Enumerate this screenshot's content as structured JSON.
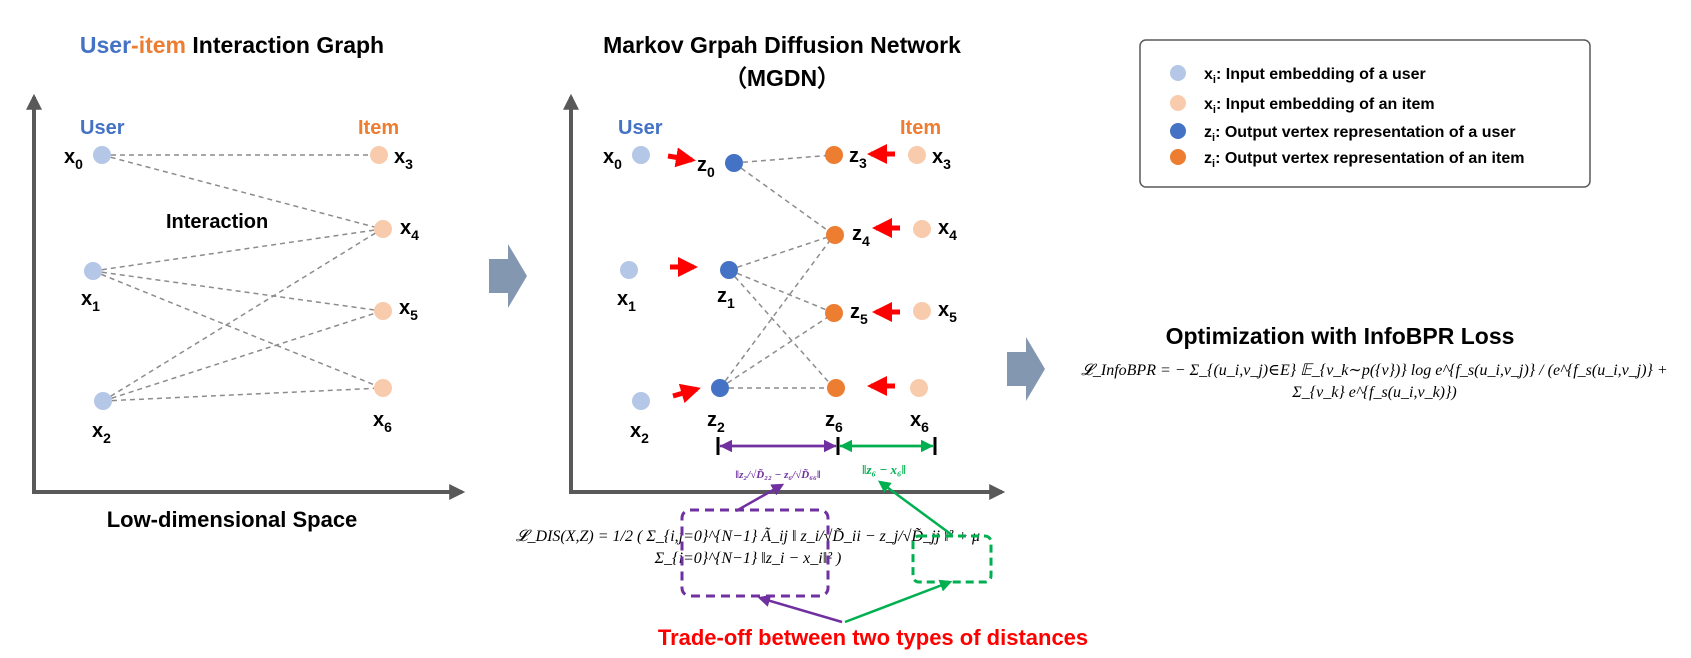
{
  "left_panel": {
    "title_user": "User",
    "title_dash": "-",
    "title_item": "item",
    "title_rest": " Interaction Graph",
    "user_header": "User",
    "item_header": "Item",
    "interaction_label": "Interaction",
    "axis_caption": "Low-dimensional Space",
    "nodes": [
      {
        "id": "x0",
        "label": "x",
        "sub": "0"
      },
      {
        "id": "x1",
        "label": "x",
        "sub": "1"
      },
      {
        "id": "x2",
        "label": "x",
        "sub": "2"
      },
      {
        "id": "x3",
        "label": "x",
        "sub": "3"
      },
      {
        "id": "x4",
        "label": "x",
        "sub": "4"
      },
      {
        "id": "x5",
        "label": "x",
        "sub": "5"
      },
      {
        "id": "x6",
        "label": "x",
        "sub": "6"
      }
    ]
  },
  "middle_panel": {
    "title_line1": "Markov Grpah Diffusion Network",
    "title_line2": "（MGDN）",
    "user_header": "User",
    "item_header": "Item",
    "user_inputs": [
      {
        "label": "x",
        "sub": "0"
      },
      {
        "label": "x",
        "sub": "1"
      },
      {
        "label": "x",
        "sub": "2"
      }
    ],
    "user_outputs": [
      {
        "label": "z",
        "sub": "0"
      },
      {
        "label": "z",
        "sub": "1"
      },
      {
        "label": "z",
        "sub": "2"
      }
    ],
    "item_outputs": [
      {
        "label": "z",
        "sub": "3"
      },
      {
        "label": "z",
        "sub": "4"
      },
      {
        "label": "z",
        "sub": "5"
      },
      {
        "label": "z",
        "sub": "6"
      }
    ],
    "item_inputs": [
      {
        "label": "x",
        "sub": "3"
      },
      {
        "label": "x",
        "sub": "4"
      },
      {
        "label": "x",
        "sub": "5"
      },
      {
        "label": "x",
        "sub": "6"
      }
    ],
    "distance_smooth": "‖z₂/√D̃₂₂ − z₆/√D̃₆₆‖",
    "distance_fit": "‖z₆ − x₆‖"
  },
  "legend": {
    "items": [
      {
        "sym": "x",
        "sub": "i",
        "text": ": Input embedding of a user",
        "color": "#b4c7e7"
      },
      {
        "sym": "x",
        "sub": "i",
        "text": ": Input embedding of an item",
        "color": "#f8cbad"
      },
      {
        "sym": "z",
        "sub": "i",
        "text": ": Output vertex representation of a user",
        "color": "#4472c4"
      },
      {
        "sym": "z",
        "sub": "i",
        "text": ": Output vertex representation of an item",
        "color": "#ed7d31"
      }
    ]
  },
  "optimization": {
    "title": "Optimization with InfoBPR Loss",
    "formula": "𝓛_InfoBPR = − Σ_{(u_i,v_j)∈E} 𝔼_{v_k∼p({v})} log e^{f_s(u_i,v_j)} / (e^{f_s(u_i,v_j)} + Σ_{v_k} e^{f_s(u_i,v_k)})"
  },
  "dis_loss": {
    "formula": "𝓛_DIS(X,Z) = 1/2 ( Σ_{i,j=0}^{N−1} Ã_ij ‖ z_i/√D̃_ii − z_j/√D̃_jj ‖² + μ Σ_{i=0}^{N−1} ‖z_i − x_i‖² )"
  },
  "tradeoff_caption": "Trade-off between two types of distances",
  "colors": {
    "user_input": "#b4c7e7",
    "item_input": "#f8cbad",
    "user_output": "#4472c4",
    "item_output": "#ed7d31",
    "user_text": "#4472c4",
    "item_text": "#ed7d31",
    "arrow_red": "#ff0000",
    "purple": "#7030a0",
    "green": "#00b050",
    "axis": "#595959",
    "big_arrow": "#8497b0",
    "caption_red": "#ff0000"
  }
}
